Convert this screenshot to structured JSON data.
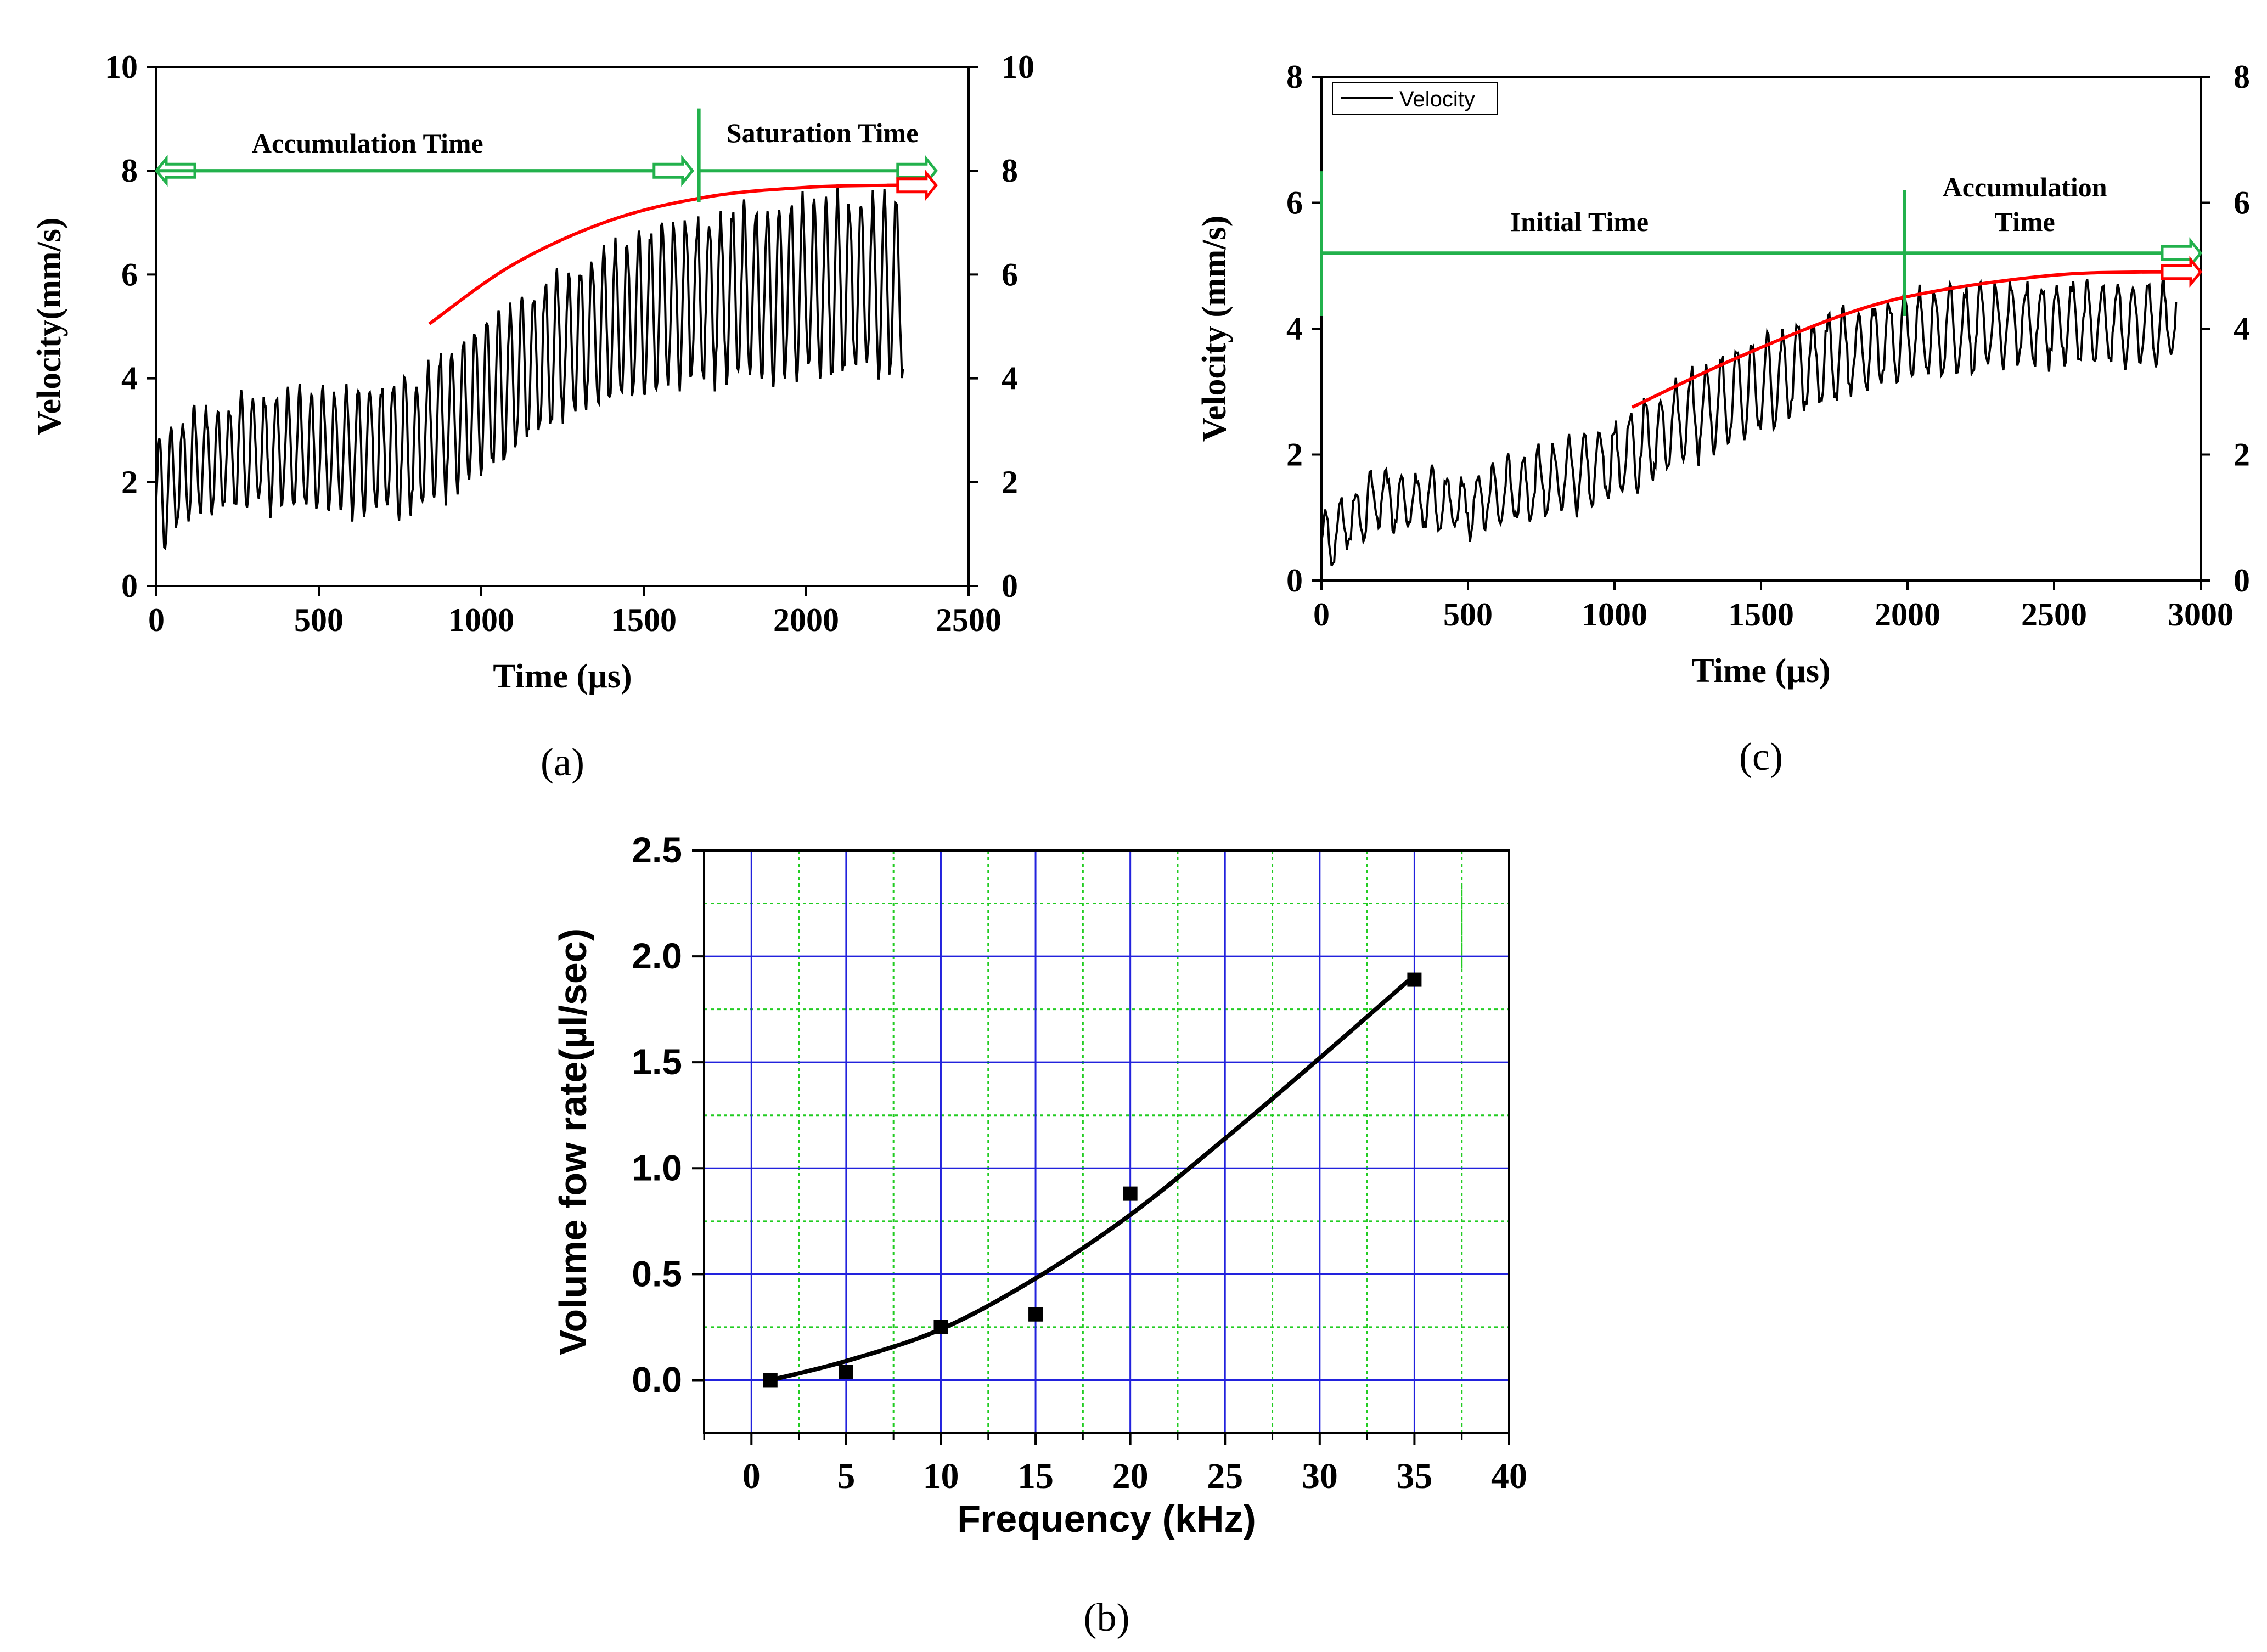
{
  "chart_data": [
    {
      "id": "a",
      "type": "line",
      "caption": "(a)",
      "xlabel": "Time (µs)",
      "ylabel": "Velocity(mm/s)",
      "xlim": [
        0,
        2500
      ],
      "ylim": [
        0,
        10
      ],
      "xticks": [
        "0",
        "500",
        "1000",
        "1500",
        "2000",
        "2500"
      ],
      "xtick_values": [
        0,
        500,
        1000,
        1500,
        2000,
        2500
      ],
      "yticks": [
        "0",
        "2",
        "4",
        "6",
        "8",
        "10"
      ],
      "ytick_values": [
        0,
        2,
        4,
        6,
        8,
        10
      ],
      "right_yticks": [
        "0",
        "2",
        "4",
        "6",
        "8",
        "10"
      ],
      "grid": false,
      "signal": {
        "t_end": 2300,
        "period": 36,
        "envelope_t": [
          0,
          100,
          300,
          500,
          800,
          1000,
          1300,
          1600,
          1900,
          2300
        ],
        "envelope_mean": [
          1.7,
          2.3,
          2.6,
          2.6,
          2.7,
          3.6,
          4.8,
          5.5,
          5.7,
          5.8
        ],
        "envelope_amp": [
          1.3,
          1.2,
          1.2,
          1.3,
          1.5,
          1.6,
          1.6,
          1.8,
          1.9,
          1.9
        ]
      },
      "trend_curve": {
        "x": [
          840,
          1100,
          1400,
          1700,
          2000,
          2250,
          2400
        ],
        "y": [
          5.05,
          6.2,
          7.05,
          7.5,
          7.68,
          7.72,
          7.72
        ],
        "color": "#ff0000"
      },
      "annotations": [
        {
          "text": "Accumulation Time",
          "x": 650,
          "y": 8.35
        },
        {
          "text": "Saturation Time",
          "x": 2050,
          "y": 8.55
        }
      ],
      "arrows": [
        {
          "from": [
            1650,
            8
          ],
          "to": [
            0,
            8
          ],
          "color": "#22b14c"
        },
        {
          "from": [
            0,
            8
          ],
          "to": [
            1650,
            8
          ],
          "color": "#22b14c"
        },
        {
          "from": [
            1670,
            8
          ],
          "to": [
            2400,
            8
          ],
          "color": "#22b14c"
        },
        {
          "from": [
            2250,
            7.72
          ],
          "to": [
            2400,
            7.72
          ],
          "color": "#ff0000"
        }
      ],
      "vline": {
        "x": 1670,
        "y_from": 7.4,
        "y_to": 9.2,
        "color": "#22b14c"
      }
    },
    {
      "id": "c",
      "type": "line",
      "caption": "(c)",
      "xlabel": "Time (µs)",
      "ylabel": "Velocity (mm/s)",
      "xlim": [
        0,
        3000
      ],
      "ylim": [
        0,
        8
      ],
      "xticks": [
        "0",
        "500",
        "1000",
        "1500",
        "2000",
        "2500",
        "3000"
      ],
      "xtick_values": [
        0,
        500,
        1000,
        1500,
        2000,
        2500,
        3000
      ],
      "yticks": [
        "0",
        "2",
        "4",
        "6",
        "8"
      ],
      "ytick_values": [
        0,
        2,
        4,
        6,
        8
      ],
      "right_yticks": [
        "0",
        "2",
        "4",
        "6",
        "8"
      ],
      "grid": false,
      "legend": {
        "entries": [
          "Velocity"
        ],
        "placement": "top-left"
      },
      "signal": {
        "t_end": 2920,
        "period": 52,
        "envelope_t": [
          0,
          200,
          500,
          1000,
          1300,
          1600,
          2000,
          2400,
          2920
        ],
        "envelope_mean": [
          0.6,
          1.3,
          1.2,
          1.9,
          2.7,
          3.3,
          3.9,
          4.1,
          4.1
        ],
        "envelope_amp": [
          0.5,
          0.55,
          0.5,
          0.7,
          0.8,
          0.8,
          0.75,
          0.75,
          0.7
        ]
      },
      "trend_curve": {
        "x": [
          1060,
          1400,
          1800,
          2100,
          2500,
          2800,
          3000
        ],
        "y": [
          2.75,
          3.5,
          4.25,
          4.6,
          4.85,
          4.9,
          4.9
        ],
        "color": "#ff0000"
      },
      "annotations": [
        {
          "text": "Initial Time",
          "x": 880,
          "y": 5.55
        },
        {
          "text": "Accumulation",
          "x": 2400,
          "y": 6.1
        },
        {
          "text": "Time",
          "x": 2400,
          "y": 5.55
        }
      ],
      "arrows": [
        {
          "from": [
            1990,
            5.2
          ],
          "to": [
            3000,
            5.2
          ],
          "color": "#22b14c"
        },
        {
          "from": [
            2800,
            4.9
          ],
          "to": [
            3000,
            4.9
          ],
          "color": "#ff0000"
        }
      ],
      "hline": {
        "x_from": 0,
        "x_to": 1990,
        "y": 5.2,
        "color": "#22b14c"
      },
      "vlines": [
        {
          "x": 0,
          "y_from": 4.2,
          "y_to": 6.5,
          "color": "#22b14c"
        },
        {
          "x": 1990,
          "y_from": 4.2,
          "y_to": 6.2,
          "color": "#22b14c"
        }
      ]
    },
    {
      "id": "b",
      "type": "scatter",
      "caption": "(b)",
      "xlabel": "Frequency (kHz)",
      "ylabel": "Volume fow rate(µl/sec)",
      "xlim": [
        -2.5,
        40
      ],
      "ylim": [
        -0.25,
        2.5
      ],
      "xticks": [
        "0",
        "5",
        "10",
        "15",
        "20",
        "25",
        "30",
        "35",
        "40"
      ],
      "xtick_values": [
        0,
        5,
        10,
        15,
        20,
        25,
        30,
        35,
        40
      ],
      "yticks": [
        "0.0",
        "0.5",
        "1.0",
        "1.5",
        "2.0",
        "2.5"
      ],
      "ytick_values": [
        0,
        0.5,
        1.0,
        1.5,
        2.0,
        2.5
      ],
      "grid": true,
      "major_grid_color": "#2222dd",
      "minor_grid_color": "#22cc22",
      "points": {
        "x": [
          1,
          5,
          10,
          15,
          20,
          35
        ],
        "y": [
          0.0,
          0.04,
          0.25,
          0.31,
          0.88,
          1.89
        ]
      },
      "fit_curve": {
        "x": [
          1,
          5,
          10,
          15,
          20,
          25,
          30,
          35
        ],
        "y": [
          0.0,
          0.09,
          0.24,
          0.48,
          0.78,
          1.14,
          1.52,
          1.91
        ]
      }
    }
  ]
}
